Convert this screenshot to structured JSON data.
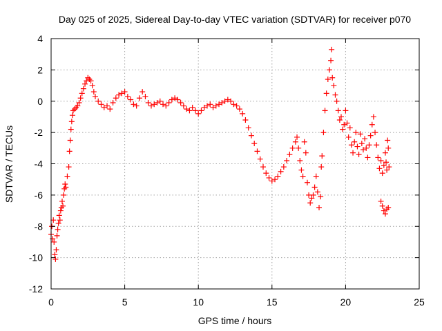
{
  "chart_data": {
    "type": "scatter",
    "title": "Day 025 of 2025, Sidereal Day-to-day VTEC variation (SDTVAR) for receiver p070",
    "xlabel": "GPS time / hours",
    "ylabel": "SDTVAR / TECUs",
    "xlim": [
      0,
      25
    ],
    "ylim": [
      -12,
      4
    ],
    "xticks": [
      0,
      5,
      10,
      15,
      20,
      25
    ],
    "yticks": [
      -12,
      -10,
      -8,
      -6,
      -4,
      -2,
      0,
      2,
      4
    ],
    "grid": true,
    "marker": "+",
    "series": [
      {
        "name": "SDTVAR",
        "color": "#ff0000",
        "points": [
          [
            0.0,
            -8.5
          ],
          [
            0.05,
            -8.0
          ],
          [
            0.1,
            -8.8
          ],
          [
            0.15,
            -7.6
          ],
          [
            0.2,
            -9.0
          ],
          [
            0.25,
            -9.8
          ],
          [
            0.3,
            -10.1
          ],
          [
            0.35,
            -9.5
          ],
          [
            0.4,
            -8.6
          ],
          [
            0.45,
            -8.2
          ],
          [
            0.5,
            -7.8
          ],
          [
            0.55,
            -7.3
          ],
          [
            0.6,
            -7.6
          ],
          [
            0.65,
            -7.0
          ],
          [
            0.7,
            -6.8
          ],
          [
            0.75,
            -6.4
          ],
          [
            0.8,
            -6.7
          ],
          [
            0.85,
            -6.0
          ],
          [
            0.9,
            -5.6
          ],
          [
            0.95,
            -5.3
          ],
          [
            1.0,
            -5.5
          ],
          [
            1.1,
            -4.8
          ],
          [
            1.2,
            -4.2
          ],
          [
            1.25,
            -3.2
          ],
          [
            1.3,
            -2.5
          ],
          [
            1.35,
            -1.8
          ],
          [
            1.4,
            -1.3
          ],
          [
            1.45,
            -0.9
          ],
          [
            1.5,
            -0.6
          ],
          [
            1.6,
            -0.5
          ],
          [
            1.7,
            -0.4
          ],
          [
            1.8,
            -0.3
          ],
          [
            1.9,
            -0.1
          ],
          [
            2.0,
            0.2
          ],
          [
            2.1,
            0.5
          ],
          [
            2.2,
            0.8
          ],
          [
            2.3,
            1.1
          ],
          [
            2.4,
            1.3
          ],
          [
            2.5,
            1.5
          ],
          [
            2.6,
            1.4
          ],
          [
            2.7,
            1.3
          ],
          [
            2.8,
            1.0
          ],
          [
            2.9,
            0.6
          ],
          [
            3.0,
            0.3
          ],
          [
            3.2,
            0.0
          ],
          [
            3.4,
            -0.2
          ],
          [
            3.6,
            -0.4
          ],
          [
            3.8,
            -0.3
          ],
          [
            4.0,
            -0.5
          ],
          [
            4.2,
            -0.1
          ],
          [
            4.4,
            0.2
          ],
          [
            4.6,
            0.4
          ],
          [
            4.8,
            0.5
          ],
          [
            5.0,
            0.6
          ],
          [
            5.2,
            0.3
          ],
          [
            5.4,
            0.1
          ],
          [
            5.6,
            -0.2
          ],
          [
            5.8,
            -0.3
          ],
          [
            6.0,
            0.2
          ],
          [
            6.2,
            0.6
          ],
          [
            6.4,
            0.3
          ],
          [
            6.6,
            -0.1
          ],
          [
            6.8,
            -0.3
          ],
          [
            7.0,
            -0.2
          ],
          [
            7.2,
            -0.1
          ],
          [
            7.4,
            0.0
          ],
          [
            7.6,
            -0.2
          ],
          [
            7.8,
            -0.3
          ],
          [
            8.0,
            -0.1
          ],
          [
            8.2,
            0.1
          ],
          [
            8.4,
            0.2
          ],
          [
            8.6,
            0.1
          ],
          [
            8.8,
            -0.1
          ],
          [
            9.0,
            -0.3
          ],
          [
            9.2,
            -0.5
          ],
          [
            9.4,
            -0.6
          ],
          [
            9.6,
            -0.4
          ],
          [
            9.8,
            -0.6
          ],
          [
            10.0,
            -0.8
          ],
          [
            10.2,
            -0.6
          ],
          [
            10.4,
            -0.4
          ],
          [
            10.6,
            -0.3
          ],
          [
            10.8,
            -0.2
          ],
          [
            11.0,
            -0.4
          ],
          [
            11.2,
            -0.3
          ],
          [
            11.4,
            -0.2
          ],
          [
            11.6,
            -0.1
          ],
          [
            11.8,
            0.0
          ],
          [
            12.0,
            0.1
          ],
          [
            12.2,
            0.0
          ],
          [
            12.4,
            -0.2
          ],
          [
            12.6,
            -0.3
          ],
          [
            12.8,
            -0.5
          ],
          [
            13.0,
            -0.8
          ],
          [
            13.2,
            -1.2
          ],
          [
            13.4,
            -1.7
          ],
          [
            13.6,
            -2.2
          ],
          [
            13.8,
            -2.7
          ],
          [
            14.0,
            -3.2
          ],
          [
            14.2,
            -3.7
          ],
          [
            14.4,
            -4.2
          ],
          [
            14.6,
            -4.6
          ],
          [
            14.8,
            -4.9
          ],
          [
            15.0,
            -5.1
          ],
          [
            15.2,
            -5.0
          ],
          [
            15.4,
            -4.8
          ],
          [
            15.6,
            -4.5
          ],
          [
            15.8,
            -4.2
          ],
          [
            16.0,
            -3.8
          ],
          [
            16.2,
            -3.4
          ],
          [
            16.4,
            -3.0
          ],
          [
            16.6,
            -2.6
          ],
          [
            16.7,
            -2.3
          ],
          [
            16.8,
            -3.0
          ],
          [
            16.9,
            -3.8
          ],
          [
            17.0,
            -4.4
          ],
          [
            17.1,
            -4.8
          ],
          [
            17.2,
            -2.6
          ],
          [
            17.3,
            -3.3
          ],
          [
            17.4,
            -5.2
          ],
          [
            17.5,
            -6.0
          ],
          [
            17.6,
            -6.5
          ],
          [
            17.7,
            -6.2
          ],
          [
            17.8,
            -6.0
          ],
          [
            17.9,
            -5.5
          ],
          [
            18.0,
            -4.8
          ],
          [
            18.1,
            -5.8
          ],
          [
            18.2,
            -6.8
          ],
          [
            18.3,
            -6.1
          ],
          [
            18.35,
            -4.2
          ],
          [
            18.4,
            -3.5
          ],
          [
            18.5,
            -2.0
          ],
          [
            18.6,
            -0.6
          ],
          [
            18.7,
            0.5
          ],
          [
            18.8,
            1.4
          ],
          [
            18.9,
            2.0
          ],
          [
            19.0,
            2.6
          ],
          [
            19.05,
            3.3
          ],
          [
            19.1,
            1.5
          ],
          [
            19.2,
            1.0
          ],
          [
            19.3,
            0.4
          ],
          [
            19.4,
            0.0
          ],
          [
            19.5,
            -0.6
          ],
          [
            19.6,
            -1.2
          ],
          [
            19.7,
            -1.0
          ],
          [
            19.8,
            -1.8
          ],
          [
            19.9,
            -1.5
          ],
          [
            20.0,
            -0.6
          ],
          [
            20.1,
            -1.4
          ],
          [
            20.2,
            -2.3
          ],
          [
            20.3,
            -1.7
          ],
          [
            20.4,
            -2.8
          ],
          [
            20.5,
            -3.3
          ],
          [
            20.6,
            -2.6
          ],
          [
            20.7,
            -2.0
          ],
          [
            20.8,
            -2.9
          ],
          [
            20.9,
            -3.4
          ],
          [
            21.0,
            -2.1
          ],
          [
            21.1,
            -2.7
          ],
          [
            21.2,
            -3.1
          ],
          [
            21.3,
            -2.4
          ],
          [
            21.4,
            -3.0
          ],
          [
            21.5,
            -3.6
          ],
          [
            21.6,
            -2.8
          ],
          [
            21.7,
            -2.2
          ],
          [
            21.8,
            -1.5
          ],
          [
            21.9,
            -1.0
          ],
          [
            22.0,
            -2.0
          ],
          [
            22.1,
            -2.8
          ],
          [
            22.2,
            -3.6
          ],
          [
            22.3,
            -4.3
          ],
          [
            22.4,
            -3.8
          ],
          [
            22.5,
            -4.6
          ],
          [
            22.6,
            -4.1
          ],
          [
            22.7,
            -3.3
          ],
          [
            22.75,
            -3.9
          ],
          [
            22.8,
            -4.4
          ],
          [
            22.85,
            -2.5
          ],
          [
            22.9,
            -3.0
          ],
          [
            22.95,
            -4.2
          ],
          [
            22.4,
            -6.4
          ],
          [
            22.5,
            -6.7
          ],
          [
            22.6,
            -7.0
          ],
          [
            22.7,
            -7.2
          ],
          [
            22.8,
            -6.9
          ],
          [
            22.9,
            -6.8
          ]
        ]
      }
    ]
  }
}
